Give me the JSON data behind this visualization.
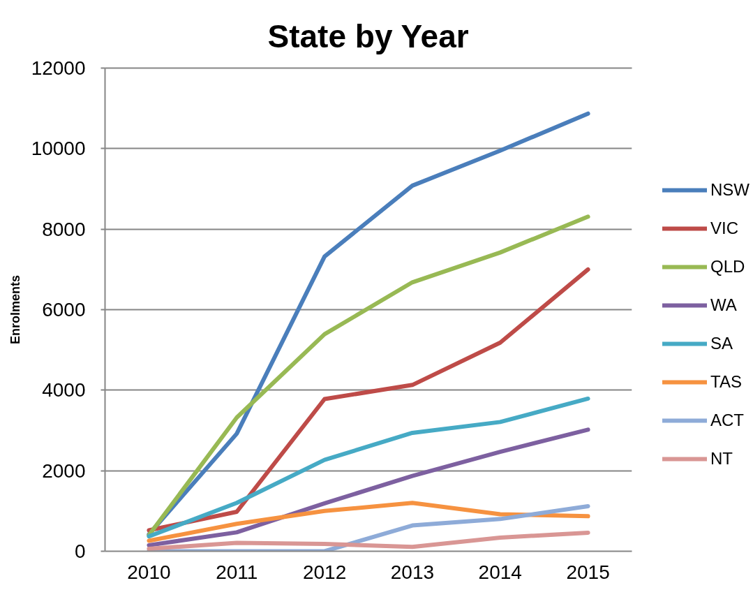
{
  "chart_data": {
    "type": "line",
    "title": "State by Year",
    "ylabel": "Enrolments",
    "categories": [
      "2010",
      "2011",
      "2012",
      "2013",
      "2014",
      "2015"
    ],
    "series": [
      {
        "name": "NSW",
        "color": "#4a7ebb",
        "values": [
          420,
          2920,
          7320,
          9080,
          9950,
          10870
        ]
      },
      {
        "name": "VIC",
        "color": "#be4b48",
        "values": [
          520,
          980,
          3780,
          4130,
          5180,
          7000
        ]
      },
      {
        "name": "QLD",
        "color": "#98b954",
        "values": [
          400,
          3320,
          5390,
          6680,
          7420,
          8310
        ]
      },
      {
        "name": "WA",
        "color": "#7d60a0",
        "values": [
          150,
          470,
          1190,
          1870,
          2470,
          3020
        ]
      },
      {
        "name": "SA",
        "color": "#46aac5",
        "values": [
          370,
          1200,
          2270,
          2940,
          3210,
          3790
        ]
      },
      {
        "name": "TAS",
        "color": "#f69240",
        "values": [
          260,
          680,
          1000,
          1200,
          920,
          870
        ]
      },
      {
        "name": "ACT",
        "color": "#8eabd8",
        "values": [
          0,
          0,
          0,
          640,
          800,
          1120
        ]
      },
      {
        "name": "NT",
        "color": "#d99694",
        "values": [
          60,
          210,
          180,
          110,
          340,
          460
        ]
      }
    ],
    "ylim": [
      0,
      12000
    ],
    "yticks": [
      0,
      2000,
      4000,
      6000,
      8000,
      10000,
      12000
    ],
    "grid": "y",
    "legend": "right",
    "line_style": "solid"
  }
}
